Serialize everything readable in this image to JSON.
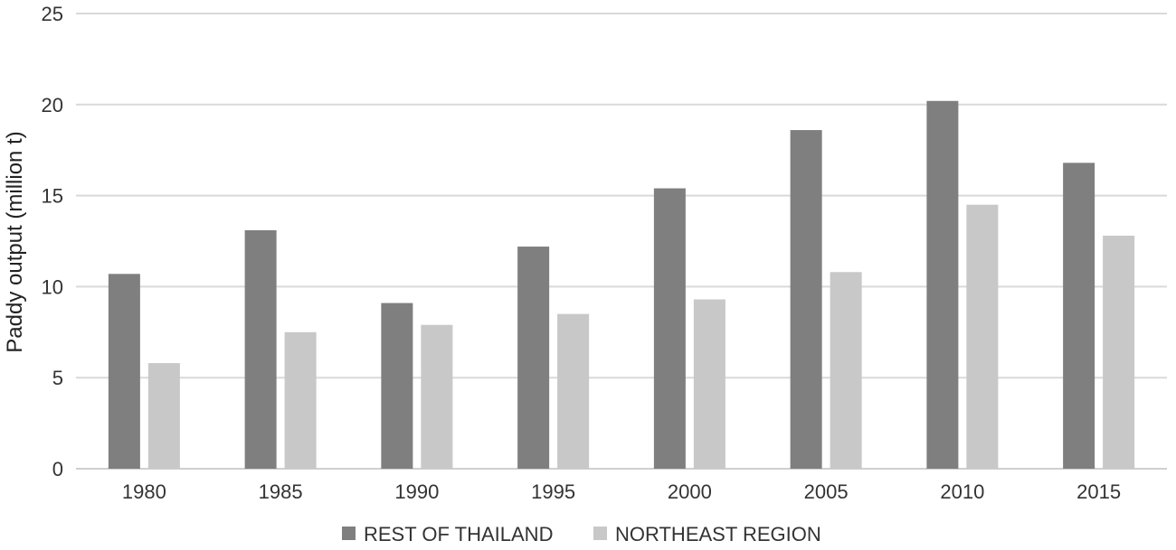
{
  "chart_data": {
    "type": "bar",
    "title": "",
    "xlabel": "",
    "ylabel": "Paddy output (million t)",
    "ylim": [
      0,
      25
    ],
    "yticks": [
      0,
      5,
      10,
      15,
      20,
      25
    ],
    "grid": true,
    "legend_position": "bottom",
    "categories": [
      "1980",
      "1985",
      "1990",
      "1995",
      "2000",
      "2005",
      "2010",
      "2015"
    ],
    "series": [
      {
        "name": "REST OF THAILAND",
        "color": "#7f7f7f",
        "values": [
          10.7,
          13.1,
          9.1,
          12.2,
          15.4,
          18.6,
          20.2,
          16.8
        ]
      },
      {
        "name": "NORTHEAST REGION",
        "color": "#c8c8c8",
        "values": [
          5.8,
          7.5,
          7.9,
          8.5,
          9.3,
          10.8,
          14.5,
          12.8
        ]
      }
    ]
  }
}
